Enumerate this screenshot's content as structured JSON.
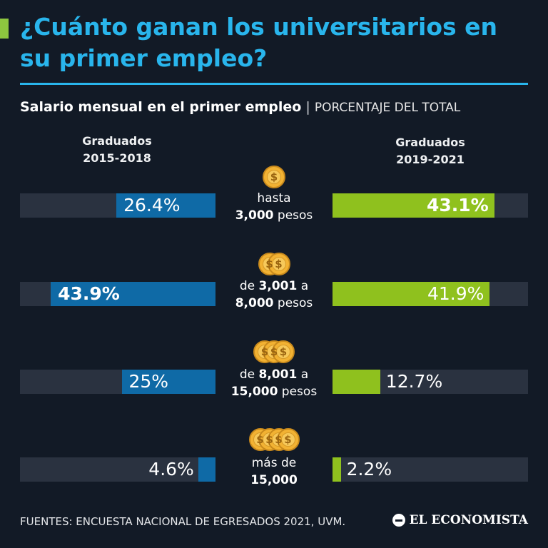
{
  "header": {
    "title": "¿Cuánto ganan los universitarios en su primer empleo?",
    "subtitle": "Salario mensual en el primer empleo",
    "separator": "|",
    "unit": "PORCENTAJE DEL TOTAL"
  },
  "columns": {
    "left_line1": "Graduados",
    "left_line2": "2015-2018",
    "right_line1": "Graduados",
    "right_line2": "2019-2021"
  },
  "footer": {
    "source": "FUENTES: ENCUESTA NACIONAL DE EGRESADOS 2021, UVM.",
    "logo": "EL ECONOMISTA"
  },
  "colors": {
    "title": "#29b5ec",
    "left_series": "#0f6aa6",
    "right_series": "#8fc11e",
    "track": "#2a3240",
    "background": "#121a26"
  },
  "icons": [
    "coin-icon"
  ],
  "chart_data": {
    "type": "bar",
    "orientation": "horizontal-butterfly",
    "max": 50,
    "categories": [
      {
        "coins": 1,
        "parts": [
          [
            "t",
            "hasta"
          ],
          [
            "br",
            ""
          ],
          [
            "b",
            "3,000"
          ],
          [
            "t",
            " pesos"
          ]
        ]
      },
      {
        "coins": 2,
        "parts": [
          [
            "t",
            "de "
          ],
          [
            "b",
            "3,001"
          ],
          [
            "t",
            " a"
          ],
          [
            "br",
            ""
          ],
          [
            "b",
            "8,000"
          ],
          [
            "t",
            " pesos"
          ]
        ]
      },
      {
        "coins": 3,
        "parts": [
          [
            "t",
            "de "
          ],
          [
            "b",
            "8,001"
          ],
          [
            "t",
            " a"
          ],
          [
            "br",
            ""
          ],
          [
            "b",
            "15,000"
          ],
          [
            "t",
            " pesos"
          ]
        ]
      },
      {
        "coins": 4,
        "parts": [
          [
            "t",
            "más de"
          ],
          [
            "br",
            ""
          ],
          [
            "b",
            "15,000"
          ]
        ]
      }
    ],
    "series": [
      {
        "name": "Graduados 2015-2018",
        "values": [
          26.4,
          43.9,
          25,
          4.6
        ],
        "labels": [
          "26.4%",
          "43.9%",
          "25%",
          "4.6%"
        ],
        "emphasis": [
          false,
          true,
          false,
          false
        ]
      },
      {
        "name": "Graduados 2019-2021",
        "values": [
          43.1,
          41.9,
          12.7,
          2.2
        ],
        "labels": [
          "43.1%",
          "41.9%",
          "12.7%",
          "2.2%"
        ],
        "emphasis": [
          true,
          false,
          false,
          false
        ]
      }
    ]
  }
}
